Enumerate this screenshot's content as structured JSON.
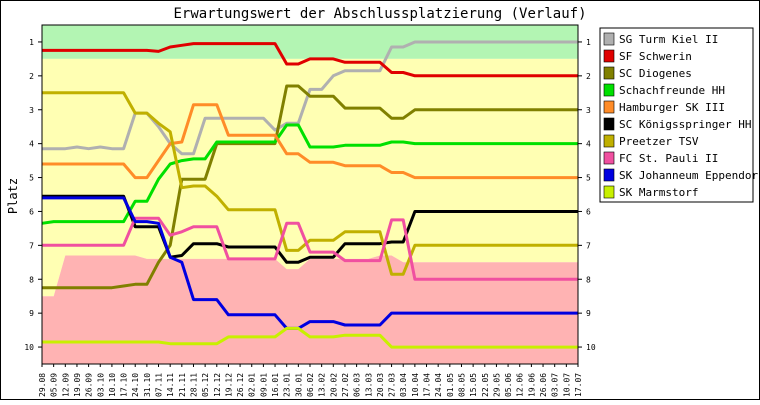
{
  "chart_data": {
    "type": "line",
    "title": "Erwartungswert der Abschlussplatzierung (Verlauf)",
    "ylabel": "Platz",
    "xlabel": "",
    "ylim": [
      0.5,
      10.5
    ],
    "y_inverted": true,
    "yticks": [
      1,
      2,
      3,
      4,
      5,
      6,
      7,
      8,
      9,
      10
    ],
    "y_tick_labels": [
      "1",
      "2",
      "3",
      "4",
      "5",
      "6",
      "7",
      "8",
      "9",
      "10"
    ],
    "legend_position": "right",
    "grid": false,
    "x": [
      "29.08",
      "05.09",
      "12.09",
      "19.09",
      "26.09",
      "03.10",
      "10.10",
      "17.10",
      "24.10",
      "31.10",
      "07.11",
      "14.11",
      "21.11",
      "28.11",
      "05.12",
      "12.12",
      "19.12",
      "26.12",
      "02.01",
      "09.01",
      "16.01",
      "23.01",
      "30.01",
      "06.02",
      "13.02",
      "20.02",
      "27.02",
      "06.03",
      "13.03",
      "20.03",
      "27.03",
      "03.04",
      "10.04",
      "17.04",
      "24.04",
      "01.05",
      "08.05",
      "15.05",
      "22.05",
      "29.05",
      "05.06",
      "12.06",
      "19.06",
      "26.06",
      "03.07",
      "10.07",
      "17.07"
    ],
    "background_bands": [
      {
        "color": "#b3f5b3",
        "upper": [
          1.5,
          1.5,
          1.5,
          1.5,
          1.5,
          1.5,
          1.5,
          1.5,
          1.5,
          1.5,
          1.5,
          1.5,
          1.5,
          1.5,
          1.5,
          1.5,
          1.5,
          1.5,
          1.5,
          1.5,
          1.5,
          1.5,
          1.5,
          1.5,
          1.5,
          1.5,
          1.5,
          1.5,
          1.5,
          1.5,
          1.5,
          1.5,
          1.5,
          1.5,
          1.5,
          1.5,
          1.5,
          1.5,
          1.5,
          1.5,
          1.5,
          1.5,
          1.5,
          1.5,
          1.5,
          1.5,
          1.5
        ]
      },
      {
        "color": "#ffffb3",
        "upper": [
          8.5,
          8.5,
          7.3,
          7.3,
          7.3,
          7.3,
          7.3,
          7.3,
          7.3,
          7.4,
          7.4,
          7.4,
          7.4,
          7.4,
          7.4,
          7.4,
          7.4,
          7.4,
          7.4,
          7.4,
          7.4,
          7.7,
          7.7,
          7.4,
          7.4,
          7.4,
          7.4,
          7.4,
          7.4,
          7.3,
          7.3,
          7.5,
          7.5,
          7.5,
          7.5,
          7.5,
          7.5,
          7.5,
          7.5,
          7.5,
          7.5,
          7.5,
          7.5,
          7.5,
          7.5,
          7.5,
          7.5
        ]
      },
      {
        "color": "#ffb3b3",
        "upper": [
          10.5,
          10.5,
          10.5,
          10.5,
          10.5,
          10.5,
          10.5,
          10.5,
          10.5,
          10.5,
          10.5,
          10.5,
          10.5,
          10.5,
          10.5,
          10.5,
          10.5,
          10.5,
          10.5,
          10.5,
          10.5,
          10.5,
          10.5,
          10.5,
          10.5,
          10.5,
          10.5,
          10.5,
          10.5,
          10.5,
          10.5,
          10.5,
          10.5,
          10.5,
          10.5,
          10.5,
          10.5,
          10.5,
          10.5,
          10.5,
          10.5,
          10.5,
          10.5,
          10.5,
          10.5,
          10.5,
          10.5
        ]
      }
    ],
    "series": [
      {
        "name": "SG Turm Kiel II",
        "color": "#b0b0b0",
        "values": [
          4.15,
          4.15,
          4.15,
          4.1,
          4.15,
          4.1,
          4.15,
          4.15,
          3.1,
          3.1,
          3.5,
          4.0,
          4.3,
          4.3,
          3.25,
          3.25,
          3.25,
          3.25,
          3.25,
          3.25,
          3.6,
          3.4,
          3.4,
          2.4,
          2.4,
          2.0,
          1.85,
          1.85,
          1.85,
          1.85,
          1.15,
          1.15,
          1.0,
          1.0,
          1.0,
          1.0,
          1.0,
          1.0,
          1.0,
          1.0,
          1.0,
          1.0,
          1.0,
          1.0,
          1.0,
          1.0,
          1.0
        ]
      },
      {
        "name": "SF Schwerin",
        "color": "#e00000",
        "values": [
          1.25,
          1.25,
          1.25,
          1.25,
          1.25,
          1.25,
          1.25,
          1.25,
          1.25,
          1.25,
          1.28,
          1.15,
          1.1,
          1.05,
          1.05,
          1.05,
          1.05,
          1.05,
          1.05,
          1.05,
          1.05,
          1.65,
          1.65,
          1.5,
          1.5,
          1.5,
          1.6,
          1.6,
          1.6,
          1.6,
          1.9,
          1.9,
          2.0,
          2.0,
          2.0,
          2.0,
          2.0,
          2.0,
          2.0,
          2.0,
          2.0,
          2.0,
          2.0,
          2.0,
          2.0,
          2.0,
          2.0
        ]
      },
      {
        "name": "SC Diogenes",
        "color": "#808000",
        "values": [
          8.25,
          8.25,
          8.25,
          8.25,
          8.25,
          8.25,
          8.25,
          8.2,
          8.15,
          8.15,
          7.5,
          7.0,
          5.05,
          5.05,
          5.05,
          4.0,
          4.0,
          4.0,
          4.0,
          4.0,
          4.0,
          2.3,
          2.3,
          2.6,
          2.6,
          2.6,
          2.95,
          2.95,
          2.95,
          2.95,
          3.25,
          3.25,
          3.0,
          3.0,
          3.0,
          3.0,
          3.0,
          3.0,
          3.0,
          3.0,
          3.0,
          3.0,
          3.0,
          3.0,
          3.0,
          3.0,
          3.0
        ]
      },
      {
        "name": "Schachfreunde HH",
        "color": "#00e000",
        "values": [
          6.35,
          6.3,
          6.3,
          6.3,
          6.3,
          6.3,
          6.3,
          6.3,
          5.7,
          5.7,
          5.05,
          4.6,
          4.5,
          4.45,
          4.45,
          3.95,
          3.95,
          3.95,
          3.95,
          3.95,
          3.95,
          3.45,
          3.45,
          4.1,
          4.1,
          4.1,
          4.05,
          4.05,
          4.05,
          4.05,
          3.95,
          3.95,
          4.0,
          4.0,
          4.0,
          4.0,
          4.0,
          4.0,
          4.0,
          4.0,
          4.0,
          4.0,
          4.0,
          4.0,
          4.0,
          4.0,
          4.0
        ]
      },
      {
        "name": "Hamburger SK III",
        "color": "#ff8c28",
        "values": [
          4.6,
          4.6,
          4.6,
          4.6,
          4.6,
          4.6,
          4.6,
          4.6,
          5.0,
          5.0,
          4.5,
          4.0,
          3.95,
          2.85,
          2.85,
          2.85,
          3.75,
          3.75,
          3.75,
          3.75,
          3.75,
          4.3,
          4.3,
          4.55,
          4.55,
          4.55,
          4.65,
          4.65,
          4.65,
          4.65,
          4.85,
          4.85,
          5.0,
          5.0,
          5.0,
          5.0,
          5.0,
          5.0,
          5.0,
          5.0,
          5.0,
          5.0,
          5.0,
          5.0,
          5.0,
          5.0,
          5.0
        ]
      },
      {
        "name": "SC Königsspringer HH",
        "color": "#000000",
        "values": [
          5.55,
          5.55,
          5.55,
          5.55,
          5.55,
          5.55,
          5.55,
          5.55,
          6.45,
          6.45,
          6.45,
          7.35,
          7.3,
          6.95,
          6.95,
          6.95,
          7.05,
          7.05,
          7.05,
          7.05,
          7.05,
          7.5,
          7.5,
          7.35,
          7.35,
          7.35,
          6.95,
          6.95,
          6.95,
          6.95,
          6.9,
          6.9,
          6.0,
          6.0,
          6.0,
          6.0,
          6.0,
          6.0,
          6.0,
          6.0,
          6.0,
          6.0,
          6.0,
          6.0,
          6.0,
          6.0,
          6.0
        ]
      },
      {
        "name": "Preetzer TSV",
        "color": "#c0b000",
        "values": [
          2.5,
          2.5,
          2.5,
          2.5,
          2.5,
          2.5,
          2.5,
          2.5,
          3.1,
          3.1,
          3.4,
          3.65,
          5.3,
          5.25,
          5.25,
          5.55,
          5.95,
          5.95,
          5.95,
          5.95,
          5.95,
          7.15,
          7.15,
          6.85,
          6.85,
          6.85,
          6.6,
          6.6,
          6.6,
          6.6,
          7.85,
          7.85,
          7.0,
          7.0,
          7.0,
          7.0,
          7.0,
          7.0,
          7.0,
          7.0,
          7.0,
          7.0,
          7.0,
          7.0,
          7.0,
          7.0,
          7.0
        ]
      },
      {
        "name": "FC St. Pauli II",
        "color": "#f050a0",
        "values": [
          7.0,
          7.0,
          7.0,
          7.0,
          7.0,
          7.0,
          7.0,
          7.0,
          6.2,
          6.2,
          6.2,
          6.7,
          6.6,
          6.45,
          6.45,
          6.45,
          7.4,
          7.4,
          7.4,
          7.4,
          7.4,
          6.35,
          6.35,
          7.2,
          7.2,
          7.2,
          7.45,
          7.45,
          7.45,
          7.45,
          6.25,
          6.25,
          8.0,
          8.0,
          8.0,
          8.0,
          8.0,
          8.0,
          8.0,
          8.0,
          8.0,
          8.0,
          8.0,
          8.0,
          8.0,
          8.0,
          8.0
        ]
      },
      {
        "name": "SK Johanneum Eppendorf",
        "color": "#0000e0",
        "values": [
          5.6,
          5.6,
          5.6,
          5.6,
          5.6,
          5.6,
          5.6,
          5.6,
          6.3,
          6.3,
          6.35,
          7.35,
          7.5,
          8.6,
          8.6,
          8.6,
          9.05,
          9.05,
          9.05,
          9.05,
          9.05,
          9.45,
          9.45,
          9.25,
          9.25,
          9.25,
          9.35,
          9.35,
          9.35,
          9.35,
          9.0,
          9.0,
          9.0,
          9.0,
          9.0,
          9.0,
          9.0,
          9.0,
          9.0,
          9.0,
          9.0,
          9.0,
          9.0,
          9.0,
          9.0,
          9.0,
          9.0
        ]
      },
      {
        "name": "SK Marmstorf",
        "color": "#c8f000",
        "values": [
          9.85,
          9.85,
          9.85,
          9.85,
          9.85,
          9.85,
          9.85,
          9.85,
          9.85,
          9.85,
          9.85,
          9.9,
          9.9,
          9.9,
          9.9,
          9.9,
          9.7,
          9.7,
          9.7,
          9.7,
          9.7,
          9.45,
          9.45,
          9.7,
          9.7,
          9.7,
          9.65,
          9.65,
          9.65,
          9.65,
          10.0,
          10.0,
          10.0,
          10.0,
          10.0,
          10.0,
          10.0,
          10.0,
          10.0,
          10.0,
          10.0,
          10.0,
          10.0,
          10.0,
          10.0,
          10.0,
          10.0
        ]
      }
    ]
  }
}
